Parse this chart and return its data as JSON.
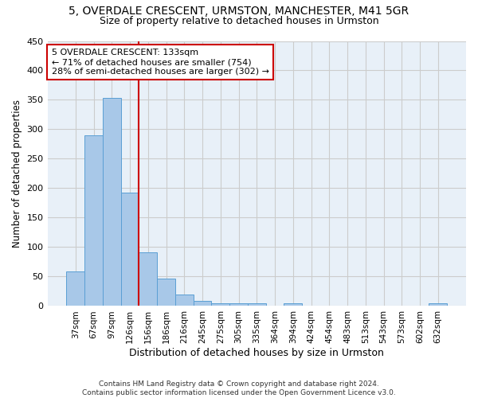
{
  "title1": "5, OVERDALE CRESCENT, URMSTON, MANCHESTER, M41 5GR",
  "title2": "Size of property relative to detached houses in Urmston",
  "xlabel": "Distribution of detached houses by size in Urmston",
  "ylabel": "Number of detached properties",
  "footer": "Contains HM Land Registry data © Crown copyright and database right 2024.\nContains public sector information licensed under the Open Government Licence v3.0.",
  "categories": [
    "37sqm",
    "67sqm",
    "97sqm",
    "126sqm",
    "156sqm",
    "186sqm",
    "216sqm",
    "245sqm",
    "275sqm",
    "305sqm",
    "335sqm",
    "364sqm",
    "394sqm",
    "424sqm",
    "454sqm",
    "483sqm",
    "513sqm",
    "543sqm",
    "573sqm",
    "602sqm",
    "632sqm"
  ],
  "values": [
    59,
    290,
    354,
    192,
    91,
    46,
    19,
    9,
    5,
    5,
    5,
    0,
    5,
    0,
    0,
    0,
    0,
    0,
    0,
    0,
    5
  ],
  "bar_color": "#a8c8e8",
  "bar_edge_color": "#5a9fd4",
  "vline_color": "#cc0000",
  "vline_x_index": 3,
  "annotation_line1": "5 OVERDALE CRESCENT: 133sqm",
  "annotation_line2": "← 71% of detached houses are smaller (754)",
  "annotation_line3": "28% of semi-detached houses are larger (302) →",
  "annotation_box_color": "#ffffff",
  "annotation_box_edge": "#cc0000",
  "annotation_fontsize": 8,
  "title1_fontsize": 10,
  "title2_fontsize": 9,
  "xlabel_fontsize": 9,
  "ylabel_fontsize": 8.5,
  "footer_fontsize": 6.5,
  "tick_fontsize": 7.5,
  "ytick_fontsize": 8,
  "ylim": [
    0,
    450
  ],
  "yticks": [
    0,
    50,
    100,
    150,
    200,
    250,
    300,
    350,
    400,
    450
  ],
  "grid_color": "#cccccc",
  "bg_color": "#e8f0f8"
}
